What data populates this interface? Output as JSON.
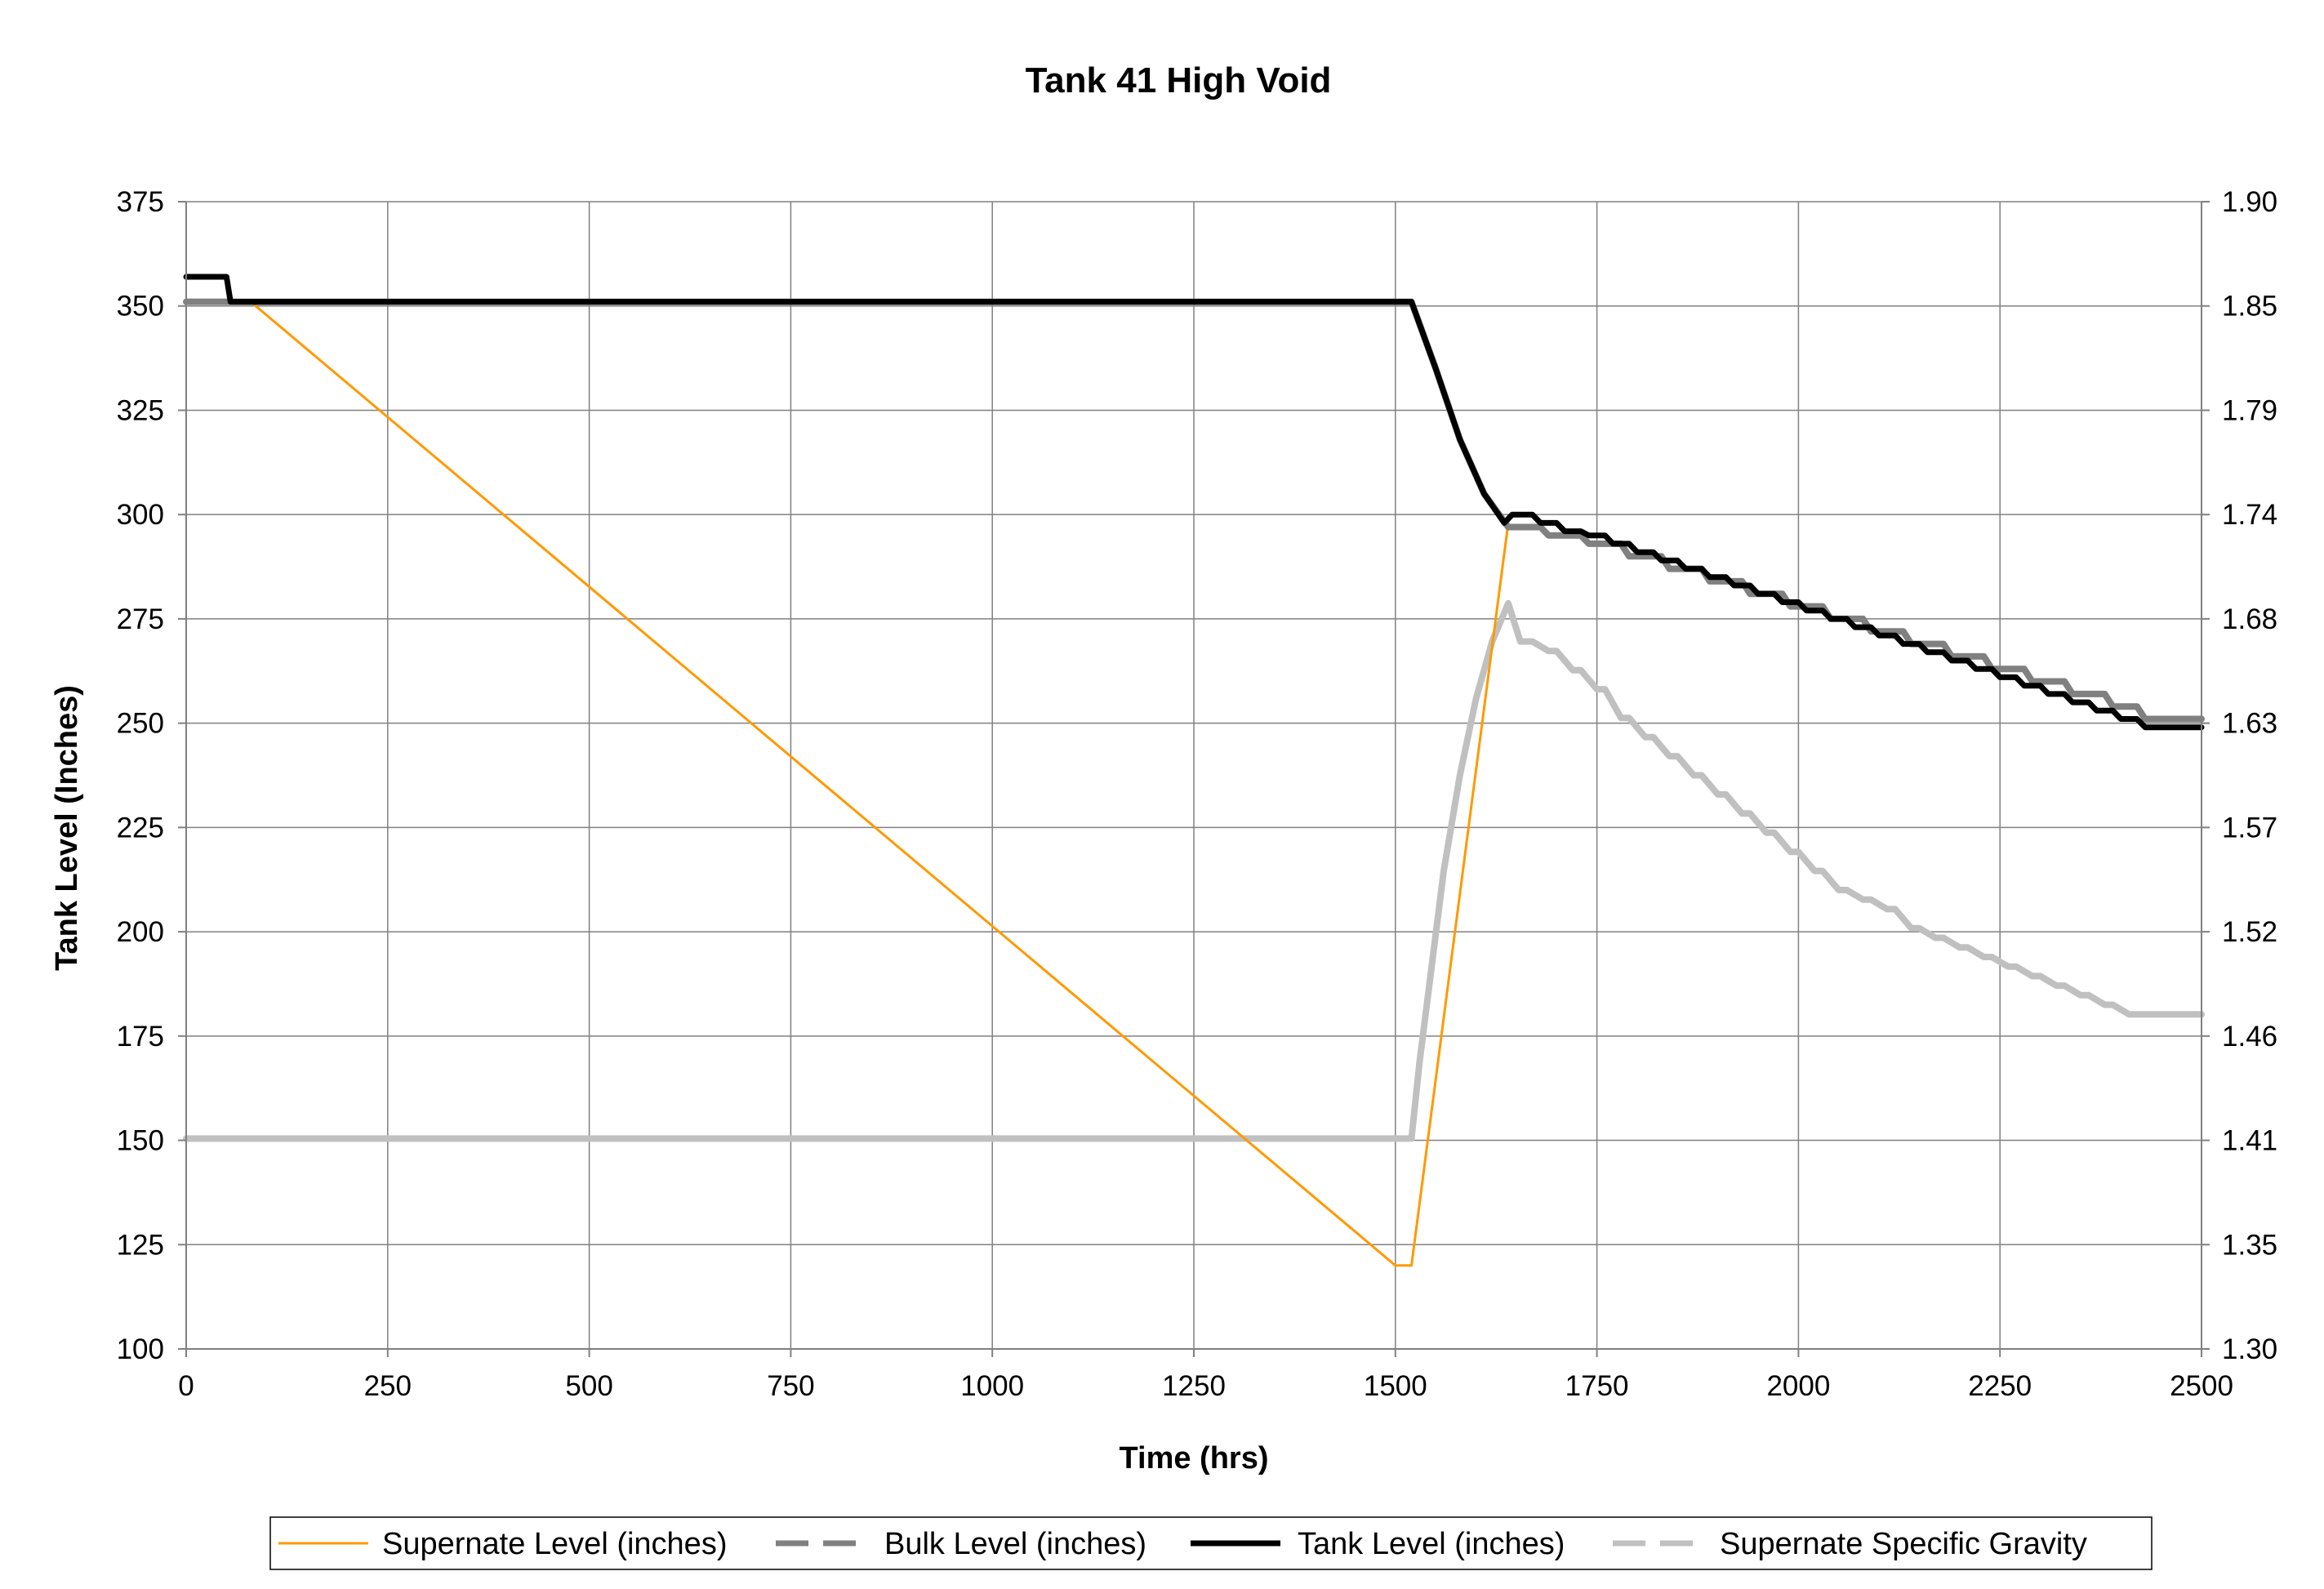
{
  "chart_data": {
    "type": "line",
    "title": "Tank 41 High Void",
    "xlabel": "Time (hrs)",
    "ylabel": "Tank Level (Inches)",
    "y2label": "",
    "xlim": [
      0,
      2500
    ],
    "ylim": [
      100,
      375
    ],
    "y2lim": [
      1.3,
      1.9
    ],
    "x_ticks": [
      "0",
      "250",
      "500",
      "750",
      "1000",
      "1250",
      "1500",
      "1750",
      "2000",
      "2250",
      "2500"
    ],
    "y_ticks": [
      "100",
      "125",
      "150",
      "175",
      "200",
      "225",
      "250",
      "275",
      "300",
      "325",
      "350",
      "375"
    ],
    "y2_ticks": [
      "1.30",
      "1.35",
      "1.41",
      "1.46",
      "1.52",
      "1.57",
      "1.63",
      "1.68",
      "1.74",
      "1.79",
      "1.85",
      "1.90"
    ],
    "grid": true,
    "legend_position": "bottom",
    "series": [
      {
        "name": "Supernate Level (inches)",
        "color": "#FF9900",
        "style": "solid",
        "axis": "left",
        "x": [
          0,
          80,
          1500,
          1520,
          1640
        ],
        "y": [
          351,
          351,
          120,
          120,
          298
        ]
      },
      {
        "name": "Bulk Level (inches)",
        "color": "#808080",
        "style": "dashed",
        "axis": "left",
        "x": [
          0,
          1520,
          1550,
          1580,
          1610,
          1640,
          1650,
          1680,
          1690,
          1730,
          1740,
          1780,
          1790,
          1830,
          1840,
          1880,
          1890,
          1930,
          1940,
          1980,
          1990,
          2030,
          2040,
          2080,
          2090,
          2130,
          2140,
          2180,
          2190,
          2230,
          2240,
          2280,
          2290,
          2330,
          2340,
          2380,
          2390,
          2420,
          2430,
          2500
        ],
        "y": [
          351,
          351,
          335,
          318,
          305,
          297,
          297,
          297,
          295,
          295,
          293,
          293,
          290,
          290,
          287,
          287,
          284,
          284,
          281,
          281,
          278,
          278,
          275,
          275,
          272,
          272,
          269,
          269,
          266,
          266,
          263,
          263,
          260,
          260,
          257,
          257,
          254,
          254,
          251,
          251
        ]
      },
      {
        "name": "Tank Level (inches)",
        "color": "#000000",
        "style": "solid",
        "axis": "left",
        "x": [
          0,
          50,
          55,
          1520,
          1550,
          1580,
          1610,
          1635,
          1645,
          1670,
          1680,
          1700,
          1710,
          1730,
          1740,
          1760,
          1770,
          1790,
          1800,
          1820,
          1830,
          1850,
          1860,
          1880,
          1890,
          1910,
          1920,
          1940,
          1950,
          1970,
          1980,
          2000,
          2010,
          2030,
          2040,
          2060,
          2070,
          2090,
          2100,
          2120,
          2130,
          2150,
          2160,
          2180,
          2190,
          2210,
          2220,
          2240,
          2250,
          2270,
          2280,
          2300,
          2310,
          2330,
          2340,
          2360,
          2370,
          2390,
          2400,
          2420,
          2430,
          2500
        ],
        "y": [
          357,
          357,
          351,
          351,
          335,
          318,
          305,
          298,
          300,
          300,
          298,
          298,
          296,
          296,
          295,
          295,
          293,
          293,
          291,
          291,
          289,
          289,
          287,
          287,
          285,
          285,
          283,
          283,
          281,
          281,
          279,
          279,
          277,
          277,
          275,
          275,
          273,
          273,
          271,
          271,
          269,
          269,
          267,
          267,
          265,
          265,
          263,
          263,
          261,
          261,
          259,
          259,
          257,
          257,
          255,
          255,
          253,
          253,
          251,
          251,
          249,
          249
        ]
      },
      {
        "name": "Supernate Specific Gravity",
        "color": "#C0C0C0",
        "style": "dashed",
        "axis": "right",
        "x": [
          0,
          1520,
          1530,
          1545,
          1560,
          1580,
          1600,
          1620,
          1640,
          1655,
          1670,
          1690,
          1700,
          1720,
          1730,
          1750,
          1760,
          1780,
          1790,
          1810,
          1820,
          1840,
          1850,
          1870,
          1880,
          1900,
          1910,
          1930,
          1940,
          1960,
          1970,
          1990,
          2000,
          2020,
          2030,
          2050,
          2060,
          2080,
          2090,
          2110,
          2120,
          2140,
          2150,
          2170,
          2180,
          2200,
          2210,
          2230,
          2240,
          2260,
          2270,
          2290,
          2300,
          2320,
          2330,
          2350,
          2360,
          2380,
          2390,
          2410,
          2420,
          2430,
          2500
        ],
        "y": [
          1.41,
          1.41,
          1.45,
          1.5,
          1.55,
          1.6,
          1.64,
          1.67,
          1.69,
          1.67,
          1.67,
          1.665,
          1.665,
          1.655,
          1.655,
          1.645,
          1.645,
          1.63,
          1.63,
          1.62,
          1.62,
          1.61,
          1.61,
          1.6,
          1.6,
          1.59,
          1.59,
          1.58,
          1.58,
          1.57,
          1.57,
          1.56,
          1.56,
          1.55,
          1.55,
          1.54,
          1.54,
          1.535,
          1.535,
          1.53,
          1.53,
          1.52,
          1.52,
          1.515,
          1.515,
          1.51,
          1.51,
          1.505,
          1.505,
          1.5,
          1.5,
          1.495,
          1.495,
          1.49,
          1.49,
          1.485,
          1.485,
          1.48,
          1.48,
          1.475,
          1.475,
          1.475,
          1.475
        ]
      }
    ]
  }
}
